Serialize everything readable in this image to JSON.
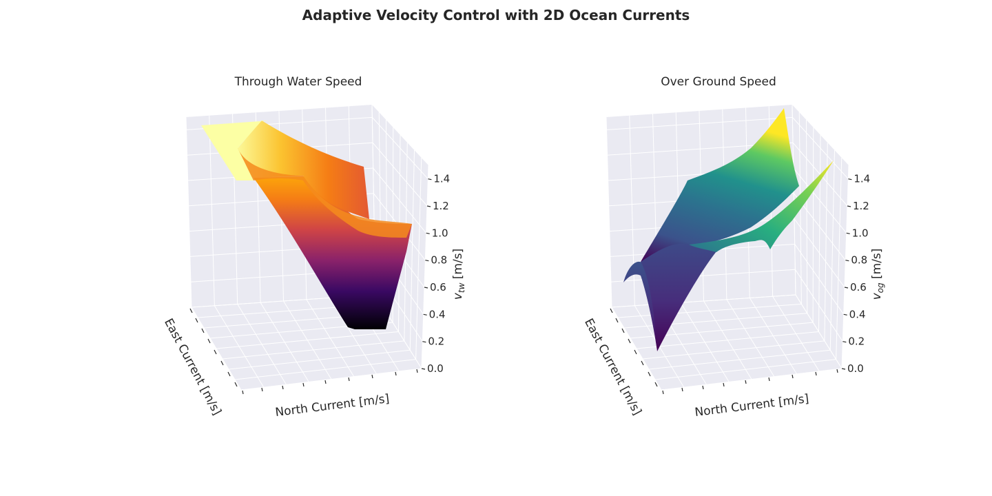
{
  "figure": {
    "title": "Adaptive Velocity Control with 2D Ocean Currents"
  },
  "chart_data": [
    {
      "type": "surface3d",
      "title": "Through Water Speed",
      "xlabel": "East Current [m/s]",
      "ylabel": "North Current [m/s]",
      "zlabel_main": "v",
      "zlabel_sub": "tw",
      "zlabel_unit": " [m/s]",
      "zticks": [
        "0.0",
        "0.2",
        "0.4",
        "0.6",
        "0.8",
        "1.0",
        "1.2",
        "1.4"
      ],
      "zlim": [
        0.0,
        1.5
      ],
      "colormap": "inferno",
      "z_range_shown": [
        0.3,
        1.5
      ]
    },
    {
      "type": "surface3d",
      "title": "Over Ground Speed",
      "xlabel": "East Current [m/s]",
      "ylabel": "North Current [m/s]",
      "zlabel_main": "v",
      "zlabel_sub": "og",
      "zlabel_unit": " [m/s]",
      "zticks": [
        "0.0",
        "0.2",
        "0.4",
        "0.6",
        "0.8",
        "1.0",
        "1.2",
        "1.4"
      ],
      "zlim": [
        0.0,
        1.5
      ],
      "colormap": "viridis",
      "z_range_shown": [
        0.0,
        1.5
      ]
    }
  ]
}
